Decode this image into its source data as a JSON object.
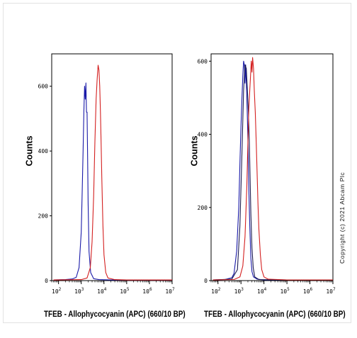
{
  "copyright": "Copyright (c) 2021 Abcam Plc",
  "chart_data": [
    {
      "type": "line",
      "title": "",
      "xlabel": "TFEB - Allophycocyanin (APC) (660/10 BP)",
      "ylabel": "Counts",
      "x_scale": "log",
      "xlim": [
        50,
        10000000
      ],
      "ylim": [
        0,
        700
      ],
      "y_ticks": [
        0,
        200,
        400,
        600
      ],
      "x_tick_labels": [
        "10^2",
        "10^3",
        "10^4",
        "10^5",
        "10^6",
        "10^7"
      ],
      "x_tick_values": [
        100,
        1000,
        10000,
        100000,
        1000000,
        10000000
      ],
      "grid": false,
      "series": [
        {
          "color": "#1a1aa8",
          "x": [
            60,
            200,
            400,
            600,
            800,
            1000,
            1100,
            1200,
            1300,
            1400,
            1500,
            1600,
            1700,
            1800,
            1900,
            2000,
            2200,
            2600,
            3500,
            6000,
            20000,
            100000,
            10000000
          ],
          "y": [
            2,
            3,
            5,
            10,
            40,
            150,
            280,
            400,
            520,
            600,
            560,
            610,
            520,
            520,
            380,
            240,
            90,
            25,
            6,
            3,
            2,
            2,
            2
          ]
        },
        {
          "color": "#d42020",
          "x": [
            60,
            1000,
            1800,
            2500,
            3000,
            3500,
            4000,
            4500,
            5000,
            5500,
            6000,
            6500,
            7000,
            7500,
            8000,
            9000,
            10000,
            12000,
            15000,
            30000,
            100000,
            10000000
          ],
          "y": [
            2,
            3,
            8,
            40,
            120,
            260,
            430,
            560,
            620,
            665,
            650,
            600,
            520,
            420,
            320,
            170,
            80,
            25,
            8,
            3,
            2,
            2
          ]
        }
      ]
    },
    {
      "type": "line",
      "title": "",
      "xlabel": "TFEB - Allophycocyanin (APC) (660/10 BP)",
      "ylabel": "Counts",
      "x_scale": "log",
      "xlim": [
        50,
        10000000
      ],
      "ylim": [
        0,
        620
      ],
      "y_ticks": [
        0,
        200,
        400,
        600
      ],
      "x_tick_labels": [
        "10^2",
        "10^3",
        "10^4",
        "10^5",
        "10^6",
        "10^7"
      ],
      "x_tick_values": [
        100,
        1000,
        10000,
        100000,
        1000000,
        10000000
      ],
      "grid": false,
      "series": [
        {
          "color": "#1a1aa8",
          "x": [
            60,
            200,
            400,
            500,
            650,
            800,
            900,
            1000,
            1100,
            1200,
            1300,
            1400,
            1500,
            1600,
            1700,
            1800,
            1900,
            2000,
            2200,
            2400,
            2700,
            3000,
            3500,
            5000,
            10000,
            100000,
            10000000
          ],
          "y": [
            2,
            3,
            8,
            20,
            80,
            200,
            320,
            420,
            500,
            560,
            600,
            590,
            540,
            590,
            540,
            500,
            440,
            380,
            250,
            150,
            60,
            25,
            10,
            4,
            2,
            2,
            2
          ]
        },
        {
          "color": "#1a1a50",
          "x": [
            60,
            400,
            700,
            900,
            1100,
            1300,
            1500,
            1700,
            1900,
            2100,
            2300,
            2500,
            2700,
            3000,
            3400,
            4000,
            6000,
            100000,
            10000000
          ],
          "y": [
            2,
            4,
            30,
            150,
            350,
            520,
            590,
            580,
            520,
            460,
            380,
            280,
            180,
            90,
            35,
            10,
            3,
            2,
            2
          ]
        },
        {
          "color": "#d42020",
          "x": [
            60,
            500,
            900,
            1200,
            1500,
            1800,
            2000,
            2200,
            2400,
            2600,
            2800,
            3000,
            3200,
            3500,
            3800,
            4200,
            4600,
            5000,
            5500,
            6000,
            7000,
            8000,
            10000,
            15000,
            100000,
            10000000
          ],
          "y": [
            2,
            3,
            10,
            40,
            120,
            260,
            380,
            470,
            520,
            560,
            600,
            570,
            610,
            580,
            520,
            460,
            380,
            300,
            210,
            140,
            70,
            30,
            10,
            4,
            2,
            2
          ]
        }
      ]
    }
  ]
}
